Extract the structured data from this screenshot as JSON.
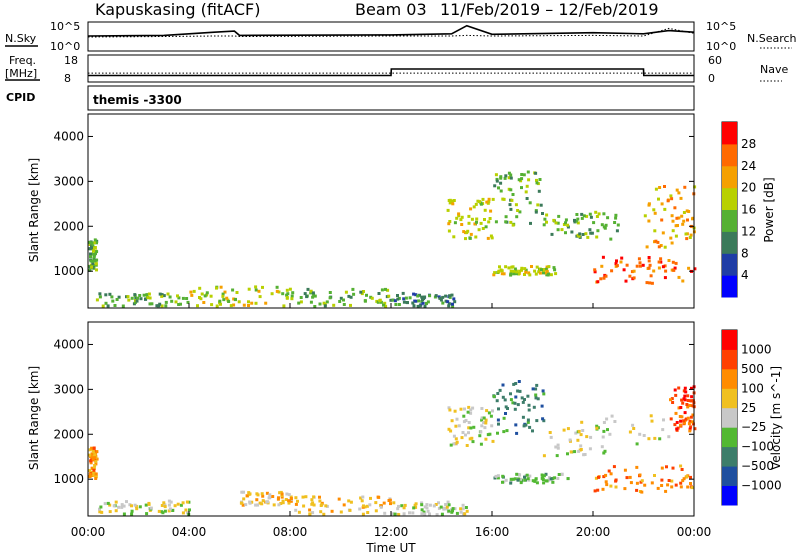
{
  "header": {
    "station": "Kapuskasing (fitACF)",
    "beam": "Beam 03",
    "date_range": "11/Feb/2019 – 12/Feb/2019"
  },
  "noise_panel": {
    "left_label": "N.Sky",
    "left_ticks": [
      "10^5",
      "10^0"
    ],
    "right_label": "N.Search",
    "right_ticks": [
      "10^5",
      "10^0"
    ]
  },
  "freq_panel": {
    "left_label_line1": "Freq.",
    "left_label_line2": "[MHz]",
    "left_ticks": [
      "18",
      "8"
    ],
    "right_label": "Nave",
    "right_ticks": [
      "60",
      "0"
    ]
  },
  "cpid_panel": {
    "left_label": "CPID",
    "program": "themis -3300"
  },
  "power_panel": {
    "ylabel": "Slant Range [km]",
    "yticks": [
      "4000",
      "3000",
      "2000",
      "1000"
    ],
    "colorbar_label": "Power [dB]",
    "colorbar_ticks": [
      "28",
      "24",
      "20",
      "16",
      "12",
      "8",
      "4"
    ]
  },
  "velocity_panel": {
    "ylabel": "Slant Range [km]",
    "yticks": [
      "4000",
      "3000",
      "2000",
      "1000"
    ],
    "colorbar_label": "Velocity [m s^-1]",
    "colorbar_ticks": [
      "1000",
      "500",
      "100",
      "25",
      "−25",
      "−100",
      "−500",
      "−1000"
    ]
  },
  "xaxis": {
    "label": "Time UT",
    "ticks": [
      "00:00",
      "04:00",
      "08:00",
      "12:00",
      "16:00",
      "20:00",
      "00:00"
    ]
  },
  "colors": {
    "power_scale": [
      "#0000ff",
      "#1f3da6",
      "#3b7a5a",
      "#55b033",
      "#b8d000",
      "#f5a000",
      "#ff6a00",
      "#ff0000"
    ],
    "velocity_scale": [
      "#0000ff",
      "#1f4f9f",
      "#3d7d6a",
      "#52b832",
      "#c8c8c8",
      "#f0c020",
      "#ff8c00",
      "#ff4000",
      "#ff0000"
    ]
  },
  "chart_data": [
    {
      "type": "line",
      "title": "N.Sky / N.Search",
      "x": [
        0,
        3,
        5,
        5.8,
        6,
        12,
        14.4,
        15,
        16,
        20,
        22,
        23,
        24
      ],
      "series": [
        {
          "name": "N.Sky",
          "values": [
            2.6,
            2.7,
            3.3,
            3.5,
            2.7,
            2.8,
            3.0,
            4.5,
            2.9,
            3.2,
            3.0,
            3.6,
            3.3
          ]
        },
        {
          "name": "N.Search",
          "values": [
            2.4,
            2.5,
            2.6,
            2.6,
            2.5,
            2.6,
            2.6,
            2.7,
            2.6,
            2.7,
            2.6,
            4.0,
            3.1
          ]
        }
      ],
      "ylim": [
        0,
        5
      ]
    },
    {
      "type": "line",
      "title": "Freq. / Nave",
      "x": [
        0,
        12,
        12.01,
        22,
        22.01,
        24
      ],
      "series": [
        {
          "name": "Freq.",
          "values": [
            10.2,
            10.2,
            12.8,
            12.8,
            10.2,
            10.2
          ]
        },
        {
          "name": "Nave",
          "values": [
            19,
            19,
            19,
            19,
            19,
            19
          ]
        }
      ],
      "ylim": [
        8,
        18
      ]
    },
    {
      "type": "heatmap",
      "title": "Power",
      "xlabel": "Time UT",
      "ylabel": "Slant Range [km]",
      "xlim": [
        0,
        24
      ],
      "ylim": [
        180,
        4500
      ],
      "value_range": [
        0,
        30
      ],
      "regions": [
        {
          "t": [
            0.0,
            0.3
          ],
          "r": [
            1000,
            1700
          ],
          "level": 3
        },
        {
          "t": [
            0.3,
            4.0
          ],
          "r": [
            200,
            500
          ],
          "level": 3
        },
        {
          "t": [
            4.0,
            8.0
          ],
          "r": [
            200,
            650
          ],
          "level": 4
        },
        {
          "t": [
            8.0,
            12.0
          ],
          "r": [
            200,
            600
          ],
          "level": 3
        },
        {
          "t": [
            12.0,
            14.5
          ],
          "r": [
            200,
            500
          ],
          "level": 2
        },
        {
          "t": [
            14.2,
            16.0
          ],
          "r": [
            1700,
            2600
          ],
          "level": 4
        },
        {
          "t": [
            16.0,
            18.0
          ],
          "r": [
            2000,
            3200
          ],
          "level": 3
        },
        {
          "t": [
            16.0,
            18.5
          ],
          "r": [
            900,
            1100
          ],
          "level": 4
        },
        {
          "t": [
            18.0,
            21.0
          ],
          "r": [
            1700,
            2300
          ],
          "level": 3
        },
        {
          "t": [
            20.0,
            24.0
          ],
          "r": [
            700,
            1300
          ],
          "level": 6
        },
        {
          "t": [
            22.0,
            24.0
          ],
          "r": [
            1500,
            2900
          ],
          "level": 5
        }
      ]
    },
    {
      "type": "heatmap",
      "title": "Velocity",
      "xlabel": "Time UT",
      "ylabel": "Slant Range [km]",
      "xlim": [
        0,
        24
      ],
      "ylim": [
        180,
        4500
      ],
      "value_range": [
        -1000,
        1000
      ],
      "regions": [
        {
          "t": [
            0.0,
            0.3
          ],
          "r": [
            1000,
            1700
          ],
          "level": 6
        },
        {
          "t": [
            0.3,
            4.0
          ],
          "r": [
            200,
            500
          ],
          "level": 4
        },
        {
          "t": [
            6.0,
            8.0
          ],
          "r": [
            400,
            700
          ],
          "level": 5
        },
        {
          "t": [
            8.0,
            12.0
          ],
          "r": [
            200,
            600
          ],
          "level": 5
        },
        {
          "t": [
            12.0,
            15.0
          ],
          "r": [
            200,
            500
          ],
          "level": 4
        },
        {
          "t": [
            14.2,
            16.0
          ],
          "r": [
            1700,
            2600
          ],
          "level": 4
        },
        {
          "t": [
            16.0,
            18.0
          ],
          "r": [
            2000,
            3200
          ],
          "level": 2
        },
        {
          "t": [
            16.0,
            19.0
          ],
          "r": [
            900,
            1100
          ],
          "level": 3
        },
        {
          "t": [
            18.0,
            23.0
          ],
          "r": [
            1500,
            2400
          ],
          "level": 4
        },
        {
          "t": [
            20.0,
            24.0
          ],
          "r": [
            700,
            1300
          ],
          "level": 6
        },
        {
          "t": [
            23.0,
            24.0
          ],
          "r": [
            2000,
            3100
          ],
          "level": 7
        }
      ]
    }
  ]
}
